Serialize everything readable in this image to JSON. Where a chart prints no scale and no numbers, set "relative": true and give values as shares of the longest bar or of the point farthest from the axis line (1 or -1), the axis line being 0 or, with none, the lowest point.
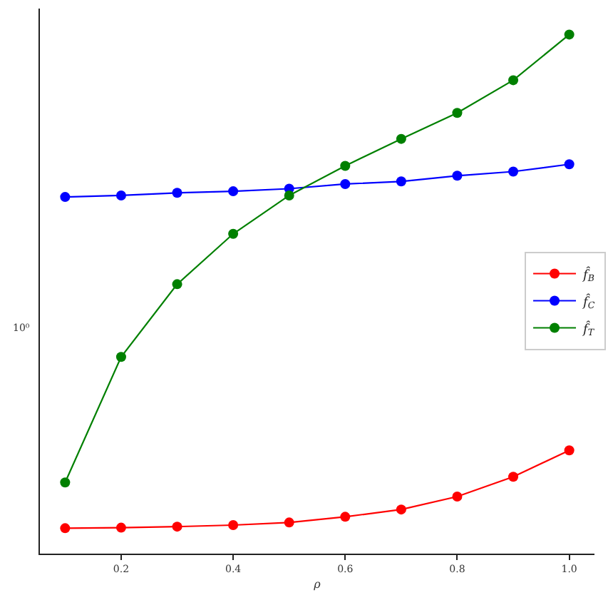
{
  "chart_data": {
    "type": "line",
    "xlabel": "ρ",
    "relative": true,
    "x": [
      0.1,
      0.2,
      0.3,
      0.4,
      0.5,
      0.6,
      0.7,
      0.8,
      0.9,
      1.0
    ],
    "series": [
      {
        "name": "f̂$_{B}$",
        "color": "#ff0000",
        "values": [
          0.049,
          0.05,
          0.052,
          0.055,
          0.06,
          0.071,
          0.085,
          0.11,
          0.148,
          0.199
        ]
      },
      {
        "name": "f̂$_{C}$",
        "color": "#0000ff",
        "values": [
          0.687,
          0.69,
          0.695,
          0.698,
          0.703,
          0.712,
          0.717,
          0.728,
          0.736,
          0.75
        ]
      },
      {
        "name": "f̂$_{T}$",
        "color": "#008000",
        "values": [
          0.137,
          0.379,
          0.519,
          0.616,
          0.69,
          0.747,
          0.799,
          0.849,
          0.912,
          1.0
        ]
      }
    ],
    "xlim": [
      0.055,
      1.045
    ],
    "xticks": [
      0.2,
      0.4,
      0.6,
      0.8,
      {
        "value": 1.0,
        "label": "1.0"
      }
    ],
    "annotations": [
      "10⁰"
    ],
    "legend": "right",
    "marker": "circle",
    "line_style": "solid"
  }
}
